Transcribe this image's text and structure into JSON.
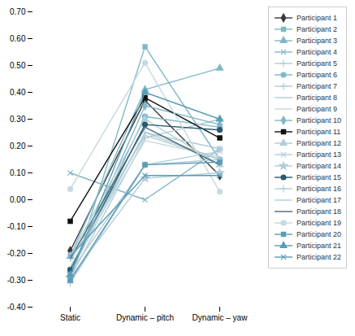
{
  "chart_data": {
    "type": "line",
    "categories": [
      "Static",
      "Dynamic – pitch",
      "Dynamic – yaw"
    ],
    "ylim": [
      -0.4,
      0.7
    ],
    "yticks": [
      {
        "value": -0.4,
        "label": "-0.40"
      },
      {
        "value": -0.3,
        "label": "-0.30"
      },
      {
        "value": -0.2,
        "label": "-0.20"
      },
      {
        "value": -0.1,
        "label": "-0.10"
      },
      {
        "value": 0.0,
        "label": "0.00"
      },
      {
        "value": 0.1,
        "label": "0.10"
      },
      {
        "value": 0.2,
        "label": "0.20"
      },
      {
        "value": 0.3,
        "label": "0.30"
      },
      {
        "value": 0.4,
        "label": "0.40"
      },
      {
        "value": 0.5,
        "label": "0.50"
      },
      {
        "value": 0.6,
        "label": "0.60"
      },
      {
        "value": 0.7,
        "label": "0.70"
      }
    ],
    "grid": false,
    "legend": "right",
    "series": [
      {
        "name": "Participant 1",
        "color": "#3a3a3a",
        "marker": "diamond",
        "values": [
          -0.19,
          0.37,
          0.09
        ]
      },
      {
        "name": "Participant 2",
        "color": "#7fb8c8",
        "marker": "square",
        "values": [
          -0.3,
          0.57,
          0.15
        ]
      },
      {
        "name": "Participant 3",
        "color": "#7fb8c8",
        "marker": "triangle",
        "values": [
          -0.21,
          0.41,
          0.49
        ]
      },
      {
        "name": "Participant 4",
        "color": "#7fb8c8",
        "marker": "times",
        "values": [
          0.1,
          0.0,
          0.19
        ]
      },
      {
        "name": "Participant 5",
        "color": "#b0cdd8",
        "marker": "plus",
        "values": [
          -0.27,
          0.25,
          0.19
        ]
      },
      {
        "name": "Participant 6",
        "color": "#7fb8c8",
        "marker": "circle",
        "values": [
          -0.27,
          0.31,
          0.27
        ]
      },
      {
        "name": "Participant 7",
        "color": "#b0cdd8",
        "marker": "plus",
        "values": [
          -0.29,
          0.23,
          0.3
        ]
      },
      {
        "name": "Participant 8",
        "color": "#b0cdd8",
        "values": [
          -0.23,
          0.24,
          0.15
        ]
      },
      {
        "name": "Participant 9",
        "color": "#c5d9e0",
        "values": [
          -0.25,
          0.22,
          0.16
        ]
      },
      {
        "name": "Participant 10",
        "color": "#7fb8c8",
        "marker": "diamond",
        "values": [
          -0.28,
          0.35,
          0.28
        ]
      },
      {
        "name": "Participant 11",
        "color": "#111111",
        "marker": "square",
        "values": [
          -0.08,
          0.38,
          0.23
        ]
      },
      {
        "name": "Participant 12",
        "color": "#b0cdd8",
        "marker": "triangle",
        "values": [
          -0.21,
          0.3,
          0.13
        ]
      },
      {
        "name": "Participant 13",
        "color": "#b0cdd8",
        "marker": "times",
        "values": [
          -0.27,
          0.13,
          0.18
        ]
      },
      {
        "name": "Participant 14",
        "color": "#b0cdd8",
        "marker": "star",
        "values": [
          -0.29,
          0.08,
          0.1
        ]
      },
      {
        "name": "Participant 15",
        "color": "#2a5a72",
        "marker": "circle",
        "values": [
          -0.26,
          0.28,
          0.26
        ]
      },
      {
        "name": "Participant 16",
        "color": "#b0cdd8",
        "marker": "plus",
        "values": [
          -0.31,
          0.13,
          0.15
        ]
      },
      {
        "name": "Participant 17",
        "color": "#b0cdd8",
        "values": [
          -0.25,
          0.25,
          0.15
        ]
      },
      {
        "name": "Participant 18",
        "color": "#4a6875",
        "values": [
          -0.22,
          0.27,
          0.13
        ]
      },
      {
        "name": "Participant 19",
        "color": "#c5d9e0",
        "marker": "circle",
        "values": [
          0.04,
          0.51,
          0.03
        ]
      },
      {
        "name": "Participant 20",
        "color": "#5a9db5",
        "marker": "square",
        "values": [
          -0.3,
          0.13,
          0.14
        ]
      },
      {
        "name": "Participant 21",
        "color": "#5a9db5",
        "marker": "triangle",
        "values": [
          -0.28,
          0.4,
          0.3
        ]
      },
      {
        "name": "Participant 22",
        "color": "#5a9db5",
        "marker": "times",
        "values": [
          -0.21,
          0.09,
          0.09
        ]
      }
    ]
  }
}
